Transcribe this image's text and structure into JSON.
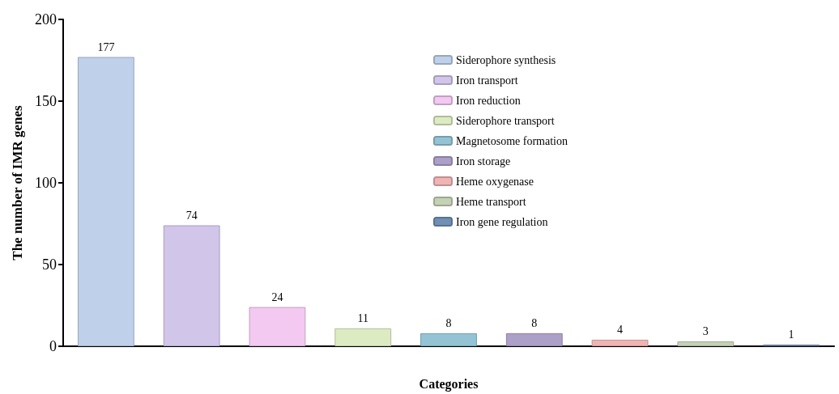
{
  "chart_data": {
    "type": "bar",
    "xlabel": "Categories",
    "ylabel": "The number of IMR genes",
    "categories": [
      null,
      null,
      null,
      null,
      null,
      null,
      null,
      null,
      null
    ],
    "series": [
      {
        "name": "Siderophore synthesis",
        "color": "#bfd0ea",
        "values": [
          177,
          null,
          null,
          null,
          null,
          null,
          null,
          null,
          null
        ]
      },
      {
        "name": "Iron transport",
        "color": "#d1c5e9",
        "values": [
          null,
          74,
          null,
          null,
          null,
          null,
          null,
          null,
          null
        ]
      },
      {
        "name": "Iron reduction",
        "color": "#f3c8f1",
        "values": [
          null,
          null,
          24,
          null,
          null,
          null,
          null,
          null,
          null
        ]
      },
      {
        "name": "Siderophore transport",
        "color": "#ddebc2",
        "values": [
          null,
          null,
          null,
          11,
          null,
          null,
          null,
          null,
          null
        ]
      },
      {
        "name": "Magnetosome formation",
        "color": "#94c4d4",
        "values": [
          null,
          null,
          null,
          null,
          8,
          null,
          null,
          null,
          null
        ]
      },
      {
        "name": "Iron storage",
        "color": "#ac9fc8",
        "values": [
          null,
          null,
          null,
          null,
          null,
          8,
          null,
          null,
          null
        ]
      },
      {
        "name": "Heme oxygenase",
        "color": "#f0b4b4",
        "values": [
          null,
          null,
          null,
          null,
          null,
          null,
          4,
          null,
          null
        ]
      },
      {
        "name": "Heme transport",
        "color": "#c5d1b6",
        "values": [
          null,
          null,
          null,
          null,
          null,
          null,
          null,
          3,
          null
        ]
      },
      {
        "name": "Iron gene regulation",
        "color": "#6f8fb4",
        "values": [
          null,
          null,
          null,
          null,
          null,
          null,
          null,
          null,
          1
        ]
      }
    ],
    "ylim": [
      0,
      200
    ],
    "yticks": [
      0,
      50,
      100,
      150,
      200
    ],
    "grid": false,
    "legend": "top right",
    "data_labels": true,
    "tick_labels": "y"
  }
}
